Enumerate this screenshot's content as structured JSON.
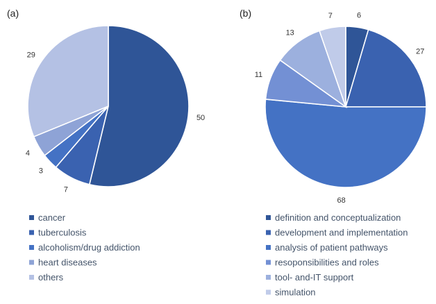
{
  "chart_data": [
    {
      "type": "pie",
      "panel_label": "(a)",
      "categories": [
        "cancer",
        "tuberculosis",
        "alcoholism/drug addiction",
        "heart diseases",
        "others"
      ],
      "values": [
        50,
        7,
        3,
        4,
        29
      ],
      "colors": [
        "#2f5597",
        "#3a62b0",
        "#4472c4",
        "#8ea3d6",
        "#b4c1e4"
      ],
      "legend_position": "bottom"
    },
    {
      "type": "pie",
      "panel_label": "(b)",
      "categories": [
        "definition and conceptualization",
        "development and implementation",
        "analysis of patient pathways",
        "resoponsibilities and roles",
        "tool- and-IT support",
        "simulation"
      ],
      "values": [
        6,
        27,
        68,
        11,
        13,
        7
      ],
      "colors": [
        "#2f5597",
        "#3a62b0",
        "#4472c4",
        "#7390d4",
        "#9cb0de",
        "#c0cbe9"
      ],
      "legend_position": "bottom"
    }
  ]
}
